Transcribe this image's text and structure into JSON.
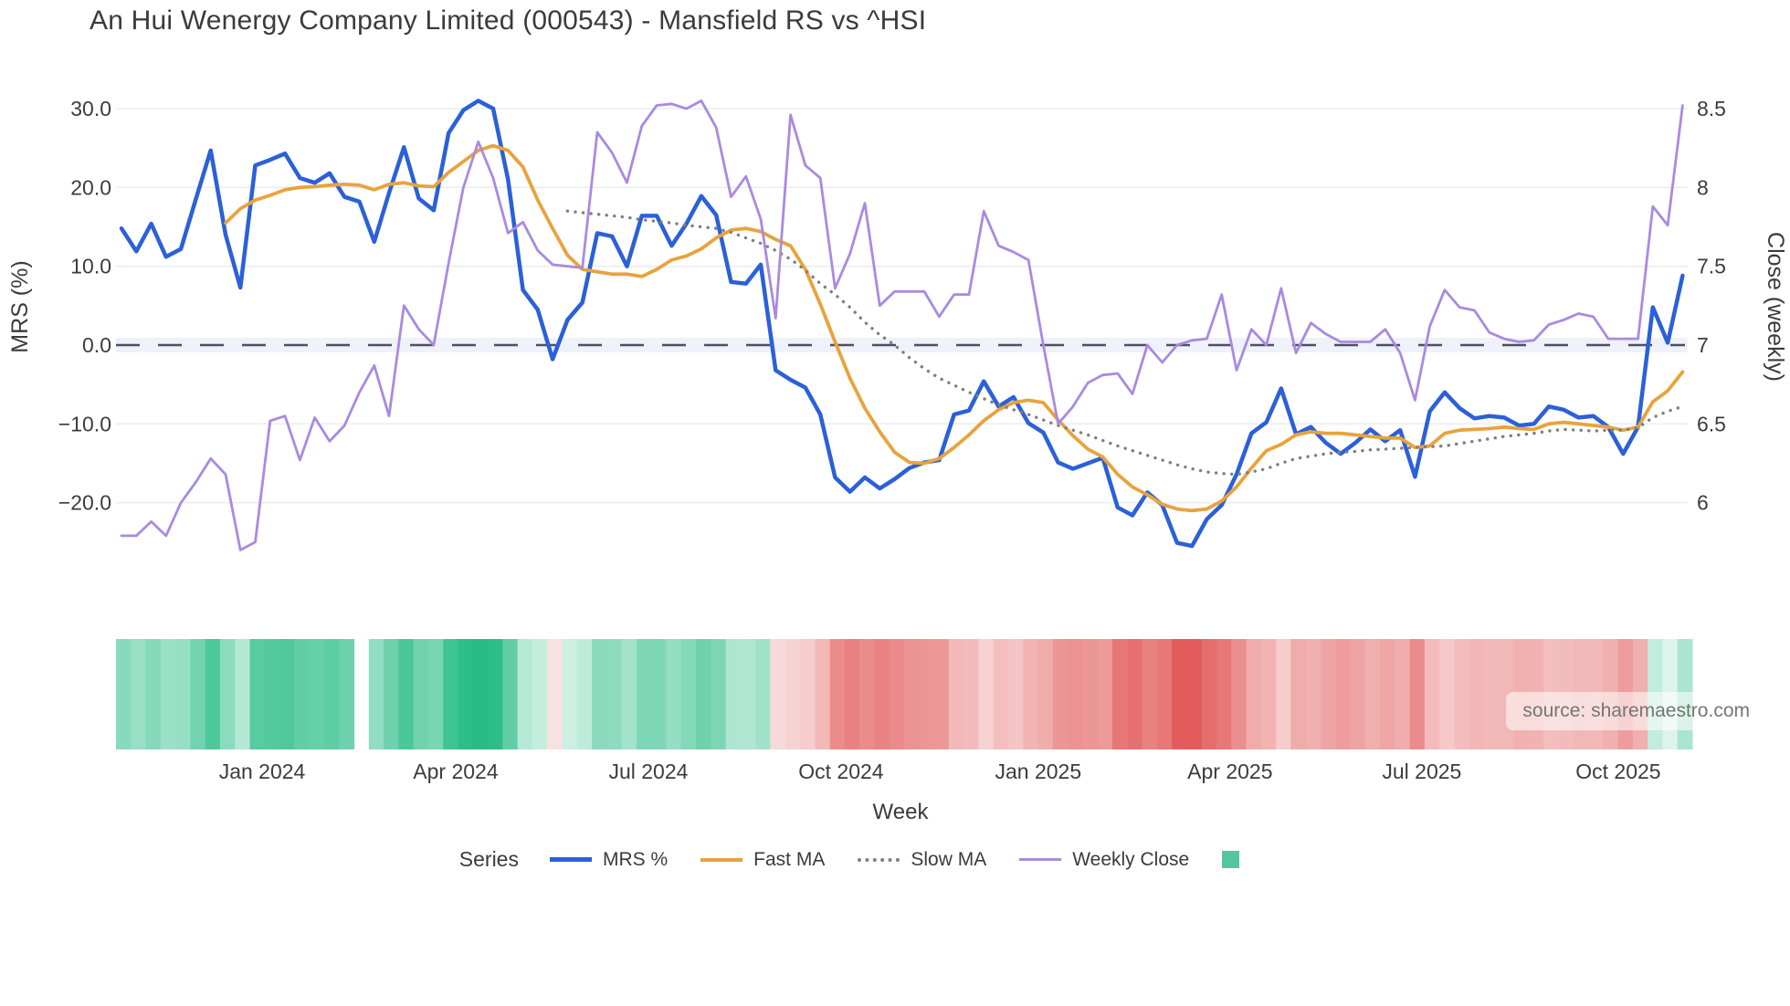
{
  "title": "An Hui Wenergy Company Limited (000543) - Mansfield RS vs ^HSI",
  "source_note": "source: sharemaestro.com",
  "week_axis_title": "Week",
  "legend": {
    "title": "Series",
    "items": [
      {
        "label": "MRS %",
        "color": "#2b60d9",
        "style": "solid",
        "thickness": 5
      },
      {
        "label": "Fast MA",
        "color": "#e8a33d",
        "style": "solid",
        "thickness": 4
      },
      {
        "label": "Slow MA",
        "color": "#7f7f7f",
        "style": "dotted",
        "thickness": 4
      },
      {
        "label": "Weekly Close",
        "color": "#a98ae0",
        "style": "solid",
        "thickness": 3
      },
      {
        "label": "",
        "color": "#53c79b",
        "style": "square",
        "thickness": 0
      }
    ]
  },
  "chart_data": {
    "type": "line",
    "title": "An Hui Wenergy Company Limited (000543) - Mansfield RS vs ^HSI",
    "xlabel": "Week",
    "ylabel_left": "MRS (%)",
    "ylabel_right": "Close (weekly)",
    "ylim_left": [
      -27,
      32
    ],
    "ylim_right": [
      5.65,
      8.6
    ],
    "grid": true,
    "legend_position": "bottom-center",
    "x_weeks": 106,
    "x_ticks": [
      {
        "label": "Jan 2024",
        "week": 9.46
      },
      {
        "label": "Apr 2024",
        "week": 22.48
      },
      {
        "label": "Jul 2024",
        "week": 35.44
      },
      {
        "label": "Oct 2024",
        "week": 48.4
      },
      {
        "label": "Jan 2025",
        "week": 61.66
      },
      {
        "label": "Apr 2025",
        "week": 74.56
      },
      {
        "label": "Jul 2025",
        "week": 87.46
      },
      {
        "label": "Oct 2025",
        "week": 100.67
      }
    ],
    "y_ticks_left": [
      {
        "label": "30.0",
        "v": 30
      },
      {
        "label": "20.0",
        "v": 20
      },
      {
        "label": "10.0",
        "v": 10
      },
      {
        "label": "0.0",
        "v": 0
      },
      {
        "label": "−10.0",
        "v": -10
      },
      {
        "label": "−20.0",
        "v": -20
      }
    ],
    "y_ticks_right": [
      {
        "label": "8.5",
        "c": 8.5
      },
      {
        "label": "8",
        "c": 8.0
      },
      {
        "label": "7.5",
        "c": 7.5
      },
      {
        "label": "7",
        "c": 7.0
      },
      {
        "label": "6.5",
        "c": 6.5
      },
      {
        "label": "6",
        "c": 6.0
      }
    ],
    "zero_line": {
      "v": 0,
      "color": "#4f4f60",
      "dash": "26 20"
    },
    "series": [
      {
        "name": "MRS %",
        "axis": "left",
        "color": "#2b60d9",
        "width": 4.5,
        "dash": "none",
        "start_week": 0,
        "values": [
          14.8,
          11.9,
          15.4,
          11.2,
          12.2,
          18.5,
          24.7,
          14.0,
          7.3,
          22.8,
          23.5,
          24.3,
          21.2,
          20.6,
          21.8,
          18.8,
          18.2,
          13.1,
          19.3,
          25.1,
          18.6,
          17.1,
          26.9,
          29.8,
          31.0,
          30.0,
          21.0,
          7.0,
          4.5,
          -1.8,
          3.2,
          5.4,
          14.2,
          13.8,
          10.0,
          16.4,
          16.4,
          12.6,
          15.4,
          18.9,
          16.5,
          8.0,
          7.8,
          10.2,
          -3.2,
          -4.4,
          -5.4,
          -8.8,
          -16.8,
          -18.6,
          -16.8,
          -18.2,
          -17.0,
          -15.6,
          -14.9,
          -14.6,
          -8.8,
          -8.3,
          -4.6,
          -7.8,
          -6.6,
          -9.9,
          -11.1,
          -14.9,
          -15.7,
          -15.0,
          -14.3,
          -20.6,
          -21.6,
          -18.7,
          -20.3,
          -25.1,
          -25.5,
          -22.1,
          -20.3,
          -16.4,
          -11.2,
          -9.8,
          -5.5,
          -11.3,
          -10.4,
          -12.4,
          -13.8,
          -12.4,
          -10.7,
          -12.2,
          -10.8,
          -16.7,
          -8.4,
          -6.0,
          -8.0,
          -9.3,
          -9.0,
          -9.2,
          -10.2,
          -10.0,
          -7.8,
          -8.2,
          -9.2,
          -9.0,
          -10.4,
          -13.8,
          -10.4,
          4.8,
          0.3,
          8.8
        ]
      },
      {
        "name": "Fast MA",
        "axis": "left",
        "color": "#e8a33d",
        "width": 3.8,
        "dash": "none",
        "start_week": 7,
        "values": [
          15.5,
          17.3,
          18.4,
          19.0,
          19.7,
          20.0,
          20.1,
          20.3,
          20.4,
          20.3,
          19.7,
          20.4,
          20.6,
          20.2,
          20.1,
          21.9,
          23.3,
          24.7,
          25.3,
          24.7,
          22.6,
          18.4,
          14.8,
          11.4,
          9.6,
          9.3,
          9.0,
          9.0,
          8.7,
          9.6,
          10.8,
          11.3,
          12.2,
          13.6,
          14.6,
          14.8,
          14.4,
          13.4,
          12.6,
          9.6,
          5.2,
          0.4,
          -4.2,
          -8.0,
          -11.0,
          -13.6,
          -14.9,
          -15.0,
          -14.4,
          -13.0,
          -11.4,
          -9.6,
          -8.2,
          -7.3,
          -7.0,
          -7.3,
          -9.5,
          -11.5,
          -13.2,
          -14.2,
          -16.4,
          -18.0,
          -19.0,
          -20.2,
          -20.8,
          -21.0,
          -20.8,
          -19.8,
          -18.0,
          -15.6,
          -13.4,
          -12.6,
          -11.4,
          -11.0,
          -11.2,
          -11.2,
          -11.4,
          -11.6,
          -11.8,
          -11.8,
          -13.0,
          -12.8,
          -11.2,
          -10.8,
          -10.7,
          -10.6,
          -10.4,
          -10.6,
          -10.7,
          -10.0,
          -9.8,
          -10.0,
          -10.2,
          -10.4,
          -10.8,
          -10.4,
          -7.2,
          -5.8,
          -3.4
        ]
      },
      {
        "name": "Slow MA",
        "axis": "left",
        "color": "#7f7f7f",
        "width": 3.4,
        "dash": "0.1 8.5",
        "start_week": 30,
        "values": [
          17.0,
          16.8,
          16.6,
          16.4,
          16.2,
          15.9,
          15.7,
          15.5,
          15.2,
          15.0,
          14.8,
          14.3,
          13.6,
          12.9,
          12.0,
          10.9,
          9.5,
          7.8,
          6.4,
          4.8,
          2.9,
          1.3,
          0.0,
          -1.6,
          -3.0,
          -4.2,
          -5.1,
          -6.0,
          -6.8,
          -7.6,
          -8.2,
          -8.8,
          -9.5,
          -10.2,
          -10.8,
          -11.4,
          -12.1,
          -12.8,
          -13.4,
          -14.0,
          -14.6,
          -15.2,
          -15.7,
          -16.1,
          -16.3,
          -16.4,
          -16.1,
          -15.7,
          -15.0,
          -14.4,
          -14.1,
          -13.8,
          -13.6,
          -13.5,
          -13.3,
          -13.2,
          -13.1,
          -13.0,
          -12.9,
          -12.8,
          -12.5,
          -12.2,
          -11.9,
          -11.6,
          -11.4,
          -11.2,
          -10.9,
          -10.7,
          -10.8,
          -10.9,
          -10.8,
          -10.8,
          -10.5,
          -9.2,
          -8.4,
          -7.8
        ]
      },
      {
        "name": "Weekly Close",
        "axis": "right",
        "color": "#a98ae0",
        "width": 2.8,
        "dash": "none",
        "start_week": 0,
        "values": [
          5.79,
          5.79,
          5.88,
          5.79,
          6.0,
          6.13,
          6.28,
          6.18,
          5.7,
          5.75,
          6.52,
          6.55,
          6.27,
          6.54,
          6.39,
          6.49,
          6.7,
          6.87,
          6.55,
          7.25,
          7.1,
          7.0,
          7.52,
          8.0,
          8.29,
          8.06,
          7.71,
          7.78,
          7.6,
          7.51,
          7.5,
          7.49,
          8.35,
          8.22,
          8.03,
          8.39,
          8.52,
          8.53,
          8.5,
          8.55,
          8.38,
          7.94,
          8.07,
          7.8,
          7.17,
          8.46,
          8.14,
          8.06,
          7.36,
          7.58,
          7.9,
          7.25,
          7.34,
          7.34,
          7.34,
          7.18,
          7.32,
          7.32,
          7.85,
          7.63,
          7.59,
          7.54,
          7.0,
          6.5,
          6.61,
          6.76,
          6.81,
          6.82,
          6.69,
          7.0,
          6.89,
          7.0,
          7.03,
          7.04,
          7.32,
          6.84,
          7.1,
          7.0,
          7.36,
          6.95,
          7.14,
          7.07,
          7.02,
          7.02,
          7.02,
          7.1,
          6.95,
          6.65,
          7.12,
          7.35,
          7.24,
          7.22,
          7.08,
          7.04,
          7.02,
          7.03,
          7.13,
          7.16,
          7.2,
          7.18,
          7.04,
          7.04,
          7.04,
          7.88,
          7.76,
          8.52
        ]
      }
    ],
    "heatmap": {
      "description": "weekly strip colormapped from MRS % values (green positive, red negative)",
      "source_series": "MRS %",
      "gap_weeks": [
        16
      ],
      "color_positive_max": "#27bc85",
      "color_negative_max": "#e25a5a"
    }
  }
}
